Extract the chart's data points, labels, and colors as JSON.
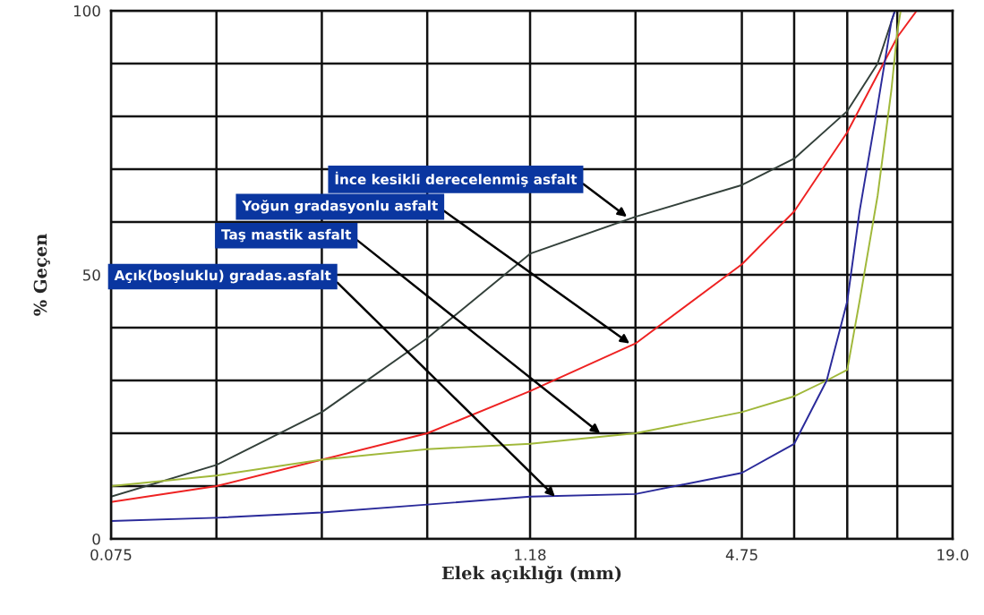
{
  "chart_data": {
    "type": "line",
    "xlabel": "Elek açıklığı (mm)",
    "ylabel": "% Geçen",
    "log": "x",
    "grid": true,
    "xlim": [
      0.075,
      19.0
    ],
    "xticks": [
      0.075,
      {
        "value": 0.15,
        "label": null
      },
      {
        "value": 0.3,
        "label": null
      },
      {
        "value": 0.6,
        "label": null
      },
      1.18,
      {
        "value": 2.36,
        "label": null
      },
      4.75,
      {
        "value": 6.7,
        "label": null
      },
      {
        "value": 9.5,
        "label": null
      },
      {
        "value": 13.2,
        "label": null
      },
      {
        "value": 19.0,
        "label": "19.0"
      }
    ],
    "ylim": [
      0,
      100
    ],
    "yticks": [
      0,
      {
        "value": 10,
        "label": null
      },
      {
        "value": 20,
        "label": null
      },
      {
        "value": 30,
        "label": null
      },
      {
        "value": 40,
        "label": null
      },
      50,
      {
        "value": 60,
        "label": null
      },
      {
        "value": 70,
        "label": null
      },
      {
        "value": 80,
        "label": null
      },
      {
        "value": 90,
        "label": null
      },
      100
    ],
    "series": [
      {
        "color": "#33403a",
        "x": [
          0.075,
          0.15,
          0.3,
          0.6,
          1.18,
          2.36,
          4.75,
          6.7,
          9.5,
          11.6,
          13.0
        ],
        "values": [
          8,
          14,
          24,
          38,
          54,
          61,
          67,
          72,
          81,
          90,
          100
        ]
      },
      {
        "color": "#ee2222",
        "x": [
          0.075,
          0.15,
          0.3,
          0.6,
          1.18,
          2.36,
          4.75,
          6.7,
          9.5,
          13.2,
          15.0
        ],
        "values": [
          7,
          10,
          15,
          20,
          28,
          37,
          52,
          62,
          77,
          95,
          100
        ]
      },
      {
        "color": "#a0b83a",
        "x": [
          0.075,
          0.15,
          0.3,
          0.6,
          1.18,
          2.36,
          4.75,
          6.7,
          8.3,
          9.5,
          10.3,
          11.6,
          12.7,
          13.2,
          13.5
        ],
        "values": [
          10,
          12,
          15,
          17,
          18,
          20,
          24,
          27,
          30,
          32,
          45,
          65,
          85,
          96,
          100
        ]
      },
      {
        "color": "#2a2a9a",
        "x": [
          0.075,
          0.15,
          0.3,
          0.6,
          1.18,
          2.36,
          4.75,
          6.7,
          8.3,
          9.5,
          10.3,
          11.6,
          12.7,
          13.0
        ],
        "values": [
          3.4,
          4,
          5,
          6.5,
          8,
          8.5,
          12.5,
          18,
          30,
          45,
          62,
          82,
          98,
          100
        ]
      }
    ],
    "annotations": [
      {
        "text": "İnce kesikli derecelenmiş asfalt",
        "x": 2.23,
        "y": 61
      },
      {
        "text": "Yoğun gradasyonlu asfalt",
        "x": 2.27,
        "y": 37
      },
      {
        "text": "Taş mastik asfalt",
        "x": 1.87,
        "y": 20
      },
      {
        "text": "Açık(boşluklu) gradas.asfalt",
        "x": 1.39,
        "y": 8
      }
    ]
  }
}
